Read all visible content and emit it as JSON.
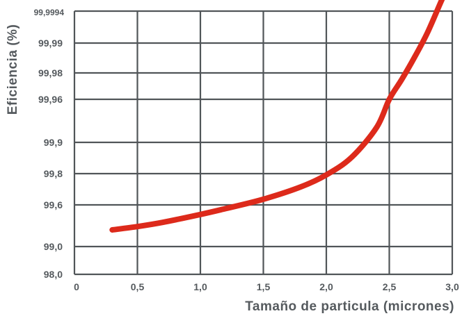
{
  "chart_data": {
    "type": "line",
    "xlabel": "Tamaño de particula (micrones)",
    "ylabel": "Eficiencia (%)",
    "x_ticks": [
      "0",
      "0,5",
      "1,0",
      "1,5",
      "2,0",
      "2,5",
      "3,0"
    ],
    "x_tick_values": [
      0,
      0.5,
      1.0,
      1.5,
      2.0,
      2.5,
      3.0
    ],
    "xlim": [
      0,
      3.0
    ],
    "y_scale": "non-linear (categorical gridlines)",
    "y_ticks": [
      "98,0",
      "99,0",
      "99,6",
      "99,8",
      "99,9",
      "99,96",
      "99,98",
      "99,99",
      "99,9994"
    ],
    "grid": true,
    "line_color": "#dd2a1b",
    "grid_color": "#505558",
    "text_color": "#555a5e",
    "series": [
      {
        "x": [
          0.3,
          0.5,
          0.7,
          1.0,
          1.2,
          1.5,
          1.8,
          2.0,
          2.2,
          2.4,
          2.5,
          2.6,
          2.7,
          2.8,
          2.9,
          2.97
        ],
        "y_level": [
          1.4,
          1.48,
          1.58,
          1.77,
          1.91,
          2.18,
          2.58,
          2.96,
          3.52,
          4.35,
          5.0,
          5.76,
          6.52,
          7.3,
          8.2,
          8.82
        ]
      }
    ]
  }
}
